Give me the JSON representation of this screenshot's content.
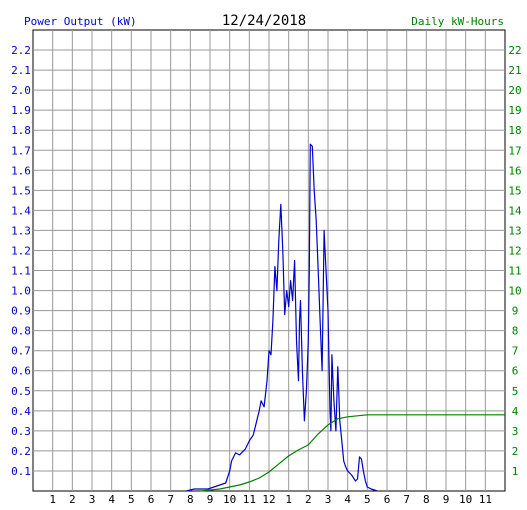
{
  "header": {
    "left_label": "Power Output (kW)",
    "date": "12/24/2018",
    "right_label": "Daily kW-Hours"
  },
  "colors": {
    "power": "#0000cc",
    "energy": "#008000",
    "grid": "#999999",
    "left_text": "#0000cc",
    "right_text": "#008000",
    "axis_text": "#000000"
  },
  "chart_data": {
    "type": "line",
    "x_tick_labels": [
      "1",
      "2",
      "3",
      "4",
      "5",
      "6",
      "7",
      "8",
      "9",
      "10",
      "11",
      "12",
      "1",
      "2",
      "3",
      "4",
      "5",
      "6",
      "7",
      "8",
      "9",
      "10",
      "11"
    ],
    "x_unit": "hours since midnight",
    "xlim": [
      0,
      24
    ],
    "y_left": {
      "label": "Power Output (kW)",
      "lim": [
        0,
        2.3
      ],
      "ticks": [
        "0.1",
        "0.2",
        "0.3",
        "0.4",
        "0.5",
        "0.6",
        "0.7",
        "0.8",
        "0.9",
        "1.0",
        "1.1",
        "1.2",
        "1.3",
        "1.4",
        "1.5",
        "1.6",
        "1.7",
        "1.8",
        "1.9",
        "2.0",
        "2.1",
        "2.2"
      ]
    },
    "y_right": {
      "label": "Daily kW-Hours",
      "lim": [
        0,
        23
      ],
      "ticks": [
        "1",
        "2",
        "3",
        "4",
        "5",
        "6",
        "7",
        "8",
        "9",
        "10",
        "11",
        "12",
        "13",
        "14",
        "15",
        "16",
        "17",
        "18",
        "19",
        "20",
        "21",
        "22"
      ]
    },
    "grid": true,
    "series": [
      {
        "name": "Power Output (kW)",
        "axis": "left",
        "color": "#0000cc",
        "points": [
          [
            7.8,
            0
          ],
          [
            8.2,
            0.01
          ],
          [
            8.6,
            0.01
          ],
          [
            8.9,
            0.01
          ],
          [
            9.2,
            0.02
          ],
          [
            9.5,
            0.03
          ],
          [
            9.8,
            0.04
          ],
          [
            10.0,
            0.1
          ],
          [
            10.1,
            0.15
          ],
          [
            10.3,
            0.19
          ],
          [
            10.5,
            0.18
          ],
          [
            10.8,
            0.21
          ],
          [
            11.0,
            0.25
          ],
          [
            11.2,
            0.28
          ],
          [
            11.5,
            0.4
          ],
          [
            11.6,
            0.45
          ],
          [
            11.75,
            0.42
          ],
          [
            11.9,
            0.55
          ],
          [
            12.0,
            0.7
          ],
          [
            12.1,
            0.68
          ],
          [
            12.2,
            0.85
          ],
          [
            12.3,
            1.12
          ],
          [
            12.4,
            1.0
          ],
          [
            12.5,
            1.25
          ],
          [
            12.6,
            1.43
          ],
          [
            12.7,
            1.2
          ],
          [
            12.8,
            0.88
          ],
          [
            12.9,
            1.0
          ],
          [
            13.0,
            0.92
          ],
          [
            13.1,
            1.05
          ],
          [
            13.2,
            0.95
          ],
          [
            13.3,
            1.15
          ],
          [
            13.4,
            0.75
          ],
          [
            13.5,
            0.55
          ],
          [
            13.55,
            0.85
          ],
          [
            13.6,
            0.95
          ],
          [
            13.7,
            0.6
          ],
          [
            13.8,
            0.35
          ],
          [
            13.9,
            0.5
          ],
          [
            14.0,
            0.75
          ],
          [
            14.05,
            1.1
          ],
          [
            14.1,
            1.73
          ],
          [
            14.2,
            1.72
          ],
          [
            14.3,
            1.5
          ],
          [
            14.4,
            1.35
          ],
          [
            14.5,
            1.1
          ],
          [
            14.6,
            0.85
          ],
          [
            14.7,
            0.6
          ],
          [
            14.8,
            1.3
          ],
          [
            14.9,
            1.1
          ],
          [
            15.0,
            0.9
          ],
          [
            15.1,
            0.4
          ],
          [
            15.15,
            0.3
          ],
          [
            15.2,
            0.68
          ],
          [
            15.3,
            0.45
          ],
          [
            15.4,
            0.3
          ],
          [
            15.5,
            0.62
          ],
          [
            15.6,
            0.35
          ],
          [
            15.7,
            0.25
          ],
          [
            15.8,
            0.15
          ],
          [
            15.9,
            0.12
          ],
          [
            16.0,
            0.1
          ],
          [
            16.2,
            0.08
          ],
          [
            16.4,
            0.05
          ],
          [
            16.5,
            0.06
          ],
          [
            16.6,
            0.17
          ],
          [
            16.7,
            0.16
          ],
          [
            16.8,
            0.1
          ],
          [
            16.9,
            0.05
          ],
          [
            17.0,
            0.02
          ],
          [
            17.2,
            0.01
          ],
          [
            17.5,
            0
          ]
        ]
      },
      {
        "name": "Daily kW-Hours",
        "axis": "right",
        "color": "#008000",
        "points": [
          [
            8.5,
            0
          ],
          [
            9.0,
            0.05
          ],
          [
            9.5,
            0.1
          ],
          [
            10.0,
            0.2
          ],
          [
            10.5,
            0.3
          ],
          [
            11.0,
            0.45
          ],
          [
            11.5,
            0.65
          ],
          [
            12.0,
            0.95
          ],
          [
            12.5,
            1.35
          ],
          [
            13.0,
            1.75
          ],
          [
            13.5,
            2.05
          ],
          [
            14.0,
            2.3
          ],
          [
            14.5,
            2.85
          ],
          [
            15.0,
            3.3
          ],
          [
            15.5,
            3.6
          ],
          [
            16.0,
            3.7
          ],
          [
            16.5,
            3.75
          ],
          [
            17.0,
            3.8
          ],
          [
            18.0,
            3.8
          ],
          [
            20.0,
            3.8
          ],
          [
            24.0,
            3.8
          ]
        ]
      }
    ]
  }
}
